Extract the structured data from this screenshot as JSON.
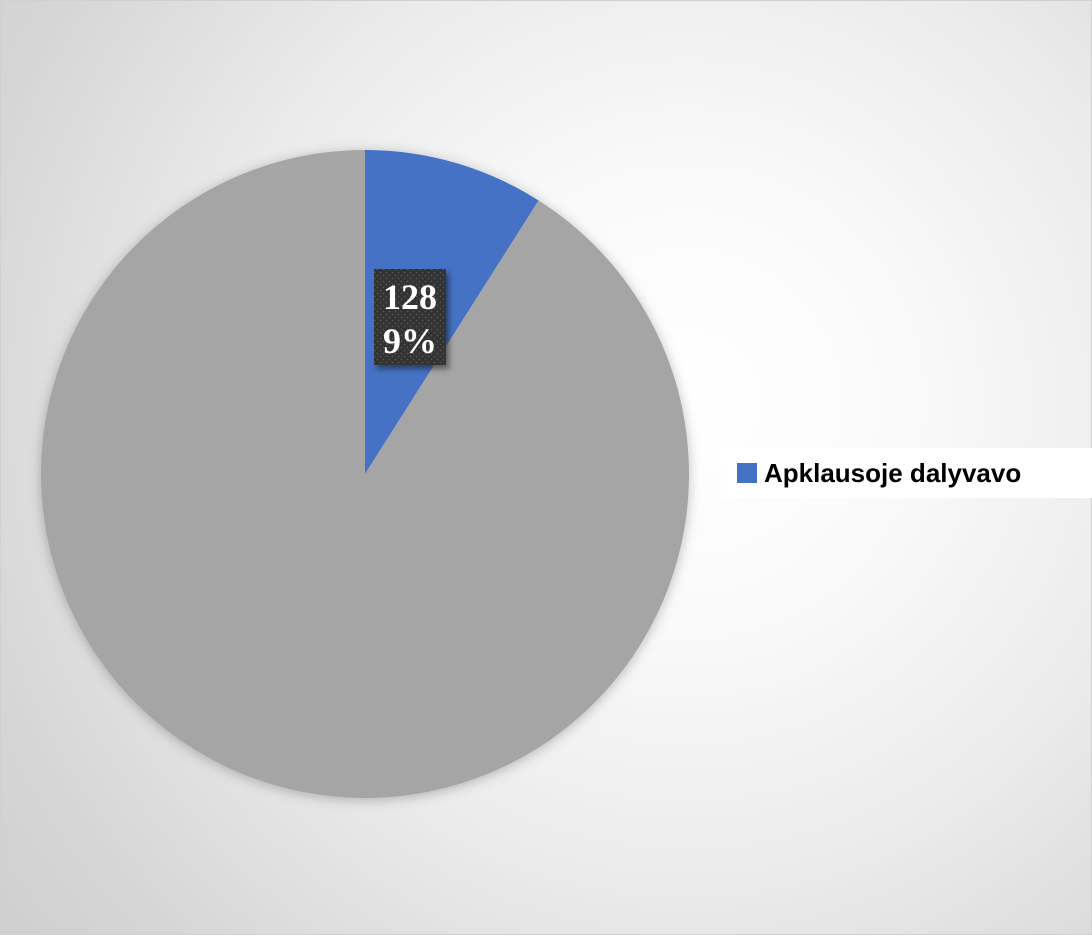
{
  "chart_data": {
    "type": "pie",
    "slices": [
      {
        "name": "Apklausoje dalyvavo",
        "value": 128,
        "percent": 9,
        "color": "#4472C4",
        "show_label": true
      },
      {
        "name": "",
        "value": null,
        "percent": 91,
        "color": "#A5A5A5",
        "show_label": false
      }
    ],
    "data_labels": [
      {
        "value_text": "128",
        "percent_text": "9%"
      }
    ],
    "legend": {
      "position": "right",
      "entries": [
        {
          "label": "Apklausoje dalyvavo",
          "color": "#4472C4"
        }
      ]
    }
  },
  "colors": {
    "label_background": "#333333",
    "label_text": "#ffffff"
  }
}
